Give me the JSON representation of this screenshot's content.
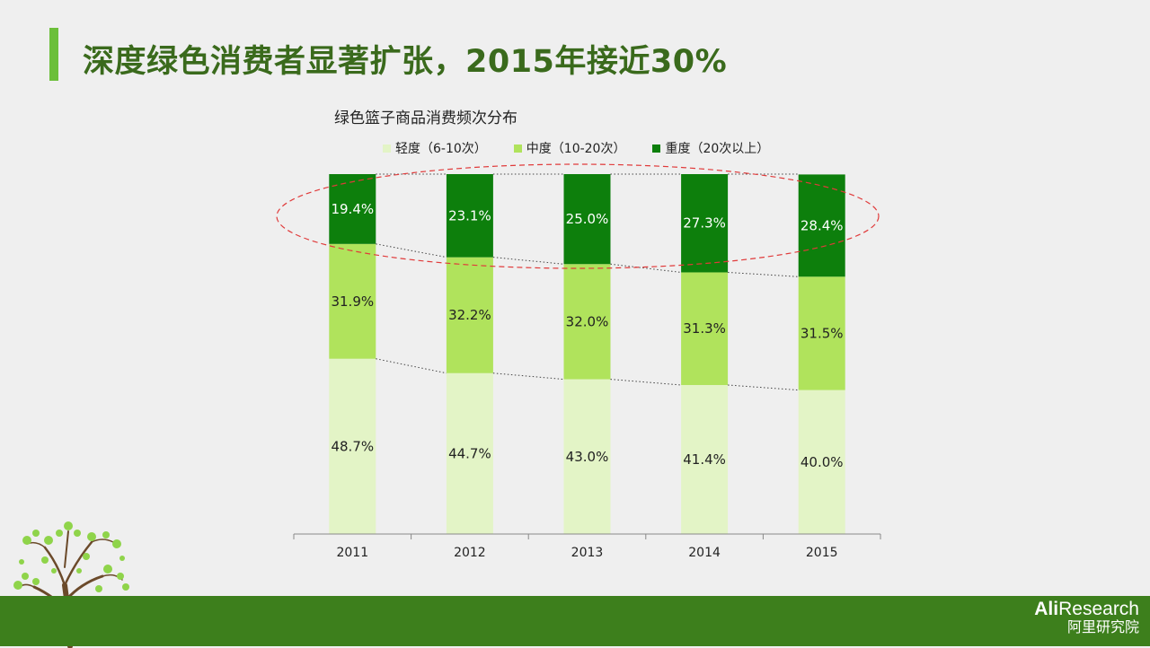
{
  "slide_title": "深度绿色消费者显著扩张，2015年接近30%",
  "footer": {
    "logo_main": "Ali",
    "logo_main_suffix": "Research",
    "logo_sub": "阿里研究院"
  },
  "colors": {
    "light": "#e3f4c6",
    "medium": "#b0e35c",
    "heavy": "#0d7f0c",
    "title": "#3a6a1c",
    "accent": "#6cbf3a",
    "footer": "#3d7f1c",
    "ellipse": "#e03a3a"
  },
  "chart_data": {
    "type": "bar",
    "stacked": true,
    "percent": true,
    "title": "绿色篮子商品消费频次分布",
    "categories": [
      "2011",
      "2012",
      "2013",
      "2014",
      "2015"
    ],
    "series": [
      {
        "name": "轻度（6-10次）",
        "values": [
          48.7,
          44.7,
          43.0,
          41.4,
          40.0
        ],
        "labels": [
          "48.7%",
          "44.7%",
          "43.0%",
          "41.4%",
          "40.0%"
        ]
      },
      {
        "name": "中度（10-20次）",
        "values": [
          31.9,
          32.2,
          32.0,
          31.3,
          31.5
        ],
        "labels": [
          "31.9%",
          "32.2%",
          "32.0%",
          "31.3%",
          "31.5%"
        ]
      },
      {
        "name": "重度（20次以上）",
        "values": [
          19.4,
          23.1,
          25.0,
          27.3,
          28.4
        ],
        "labels": [
          "19.4%",
          "23.1%",
          "25.0%",
          "27.3%",
          "28.4%"
        ]
      }
    ],
    "ylim": [
      0,
      100
    ],
    "legend_position": "top",
    "grid": false,
    "annotation": "red dashed ellipse highlighting the heavy segment"
  }
}
